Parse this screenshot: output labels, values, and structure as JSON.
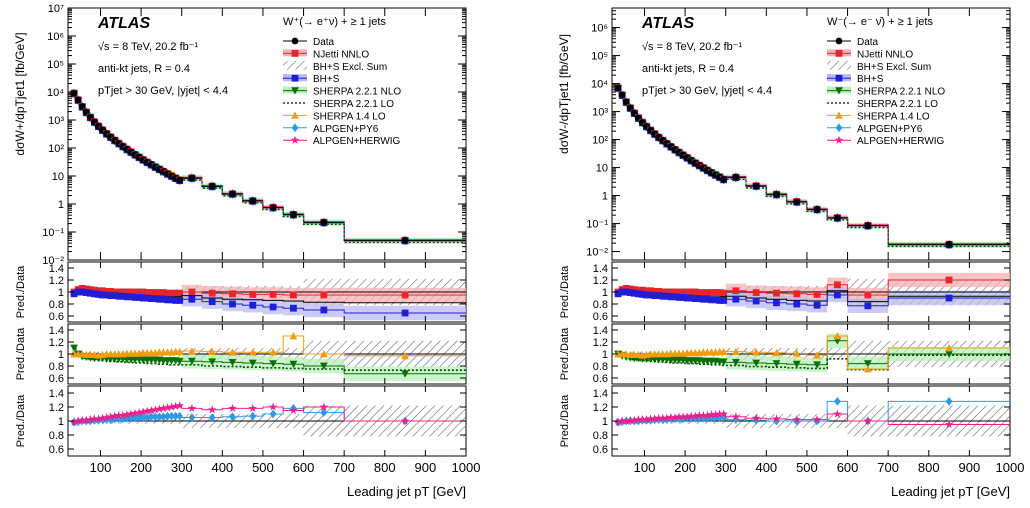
{
  "chart_data": [
    {
      "type": "line",
      "panel": "W+",
      "atlas_label": "ATLAS",
      "energy": "√s = 8 TeV, 20.2 fb⁻¹",
      "jets": "anti-kt jets, R = 0.4",
      "cuts": "pTjet > 30 GeV, |yjet| < 4.4",
      "process": "W⁺(→ e⁺ν) + ≥ 1 jets",
      "ylabel": "dσW+/dpTjet1 [fb/GeV]",
      "xlabel": "Leading jet pT [GeV]",
      "xlim": [
        20,
        1000
      ],
      "ylim": [
        0.01,
        10000000
      ],
      "yscale": "log",
      "x_ticks": [
        "100",
        "200",
        "300",
        "400",
        "500",
        "600",
        "700",
        "800",
        "900",
        "1000"
      ],
      "y_ticks": [
        "10⁻²",
        "10⁻¹",
        "1",
        "10",
        "10²",
        "10³",
        "10⁴",
        "10⁵",
        "10⁶",
        "10⁷"
      ],
      "legend": [
        "Data",
        "NJetti NNLO",
        "BH+S Excl. Sum",
        "BH+S",
        "SHERPA 2.2.1 NLO",
        "SHERPA 2.2.1 LO",
        "SHERPA 1.4 LO",
        "ALPGEN+PY6",
        "ALPGEN+HERWIG"
      ],
      "bins": [
        [
          30,
          40
        ],
        [
          40,
          50
        ],
        [
          50,
          60
        ],
        [
          60,
          70
        ],
        [
          70,
          80
        ],
        [
          80,
          90
        ],
        [
          90,
          100
        ],
        [
          100,
          110
        ],
        [
          110,
          120
        ],
        [
          120,
          130
        ],
        [
          130,
          140
        ],
        [
          140,
          150
        ],
        [
          150,
          160
        ],
        [
          160,
          170
        ],
        [
          170,
          180
        ],
        [
          180,
          190
        ],
        [
          190,
          200
        ],
        [
          200,
          210
        ],
        [
          210,
          220
        ],
        [
          220,
          230
        ],
        [
          230,
          240
        ],
        [
          240,
          250
        ],
        [
          250,
          260
        ],
        [
          260,
          270
        ],
        [
          270,
          280
        ],
        [
          280,
          290
        ],
        [
          290,
          300
        ],
        [
          300,
          350
        ],
        [
          350,
          400
        ],
        [
          400,
          450
        ],
        [
          450,
          500
        ],
        [
          500,
          550
        ],
        [
          550,
          600
        ],
        [
          600,
          700
        ],
        [
          700,
          1000
        ]
      ],
      "data": [
        9000,
        5200,
        3000,
        1900,
        1250,
        850,
        600,
        440,
        325,
        245,
        188,
        146,
        114,
        90,
        72,
        58,
        47,
        38,
        31,
        25.5,
        21,
        17.5,
        14.5,
        12,
        10,
        8.4,
        7.1,
        8.5,
        4.3,
        2.3,
        1.3,
        0.75,
        0.42,
        0.22,
        0.05
      ],
      "ratio_panels": [
        {
          "ylabel": "Pred./Data",
          "yrange": [
            0.5,
            1.5
          ],
          "series": {
            "NJetti NNLO": [
              1.0,
              1.04,
              1.06,
              1.05,
              1.04,
              1.03,
              1.02,
              1.02,
              1.01,
              1.01,
              1.0,
              1.0,
              1.0,
              1.0,
              1.0,
              1.0,
              1.0,
              1.0,
              0.99,
              0.99,
              0.99,
              0.99,
              0.99,
              0.98,
              0.98,
              0.98,
              0.98,
              1.0,
              0.98,
              0.97,
              0.96,
              0.96,
              0.95,
              0.95,
              0.95
            ],
            "BH+S Excl. Sum": [
              0.98,
              1.0,
              1.02,
              1.0,
              0.99,
              0.98,
              0.98,
              0.97,
              0.97,
              0.96,
              0.96,
              0.96,
              0.95,
              0.95,
              0.95,
              0.95,
              0.94,
              0.94,
              0.94,
              0.93,
              0.93,
              0.93,
              0.93,
              0.92,
              0.92,
              0.92,
              0.92,
              0.94,
              0.9,
              0.88,
              0.87,
              0.86,
              0.85,
              0.83,
              0.82
            ],
            "BH+S": [
              0.97,
              1.0,
              1.0,
              0.99,
              0.98,
              0.97,
              0.96,
              0.95,
              0.95,
              0.94,
              0.94,
              0.93,
              0.93,
              0.92,
              0.92,
              0.91,
              0.91,
              0.9,
              0.9,
              0.89,
              0.89,
              0.88,
              0.88,
              0.87,
              0.87,
              0.86,
              0.86,
              0.88,
              0.84,
              0.8,
              0.78,
              0.75,
              0.73,
              0.7,
              0.65
            ]
          }
        },
        {
          "ylabel": "Pred./Data",
          "yrange": [
            0.5,
            1.5
          ],
          "series": {
            "SHERPA 2.2.1 NLO": [
              1.1,
              1.0,
              0.96,
              0.95,
              0.94,
              0.93,
              0.93,
              0.93,
              0.92,
              0.92,
              0.92,
              0.92,
              0.92,
              0.91,
              0.91,
              0.91,
              0.91,
              0.9,
              0.9,
              0.9,
              0.9,
              0.9,
              0.89,
              0.89,
              0.89,
              0.89,
              0.88,
              0.88,
              0.87,
              0.86,
              0.85,
              0.84,
              0.83,
              0.8,
              0.67
            ],
            "SHERPA 2.2.1 LO": [
              1.0,
              0.97,
              0.95,
              0.93,
              0.92,
              0.91,
              0.9,
              0.89,
              0.89,
              0.88,
              0.88,
              0.87,
              0.87,
              0.86,
              0.86,
              0.85,
              0.85,
              0.85,
              0.84,
              0.84,
              0.84,
              0.83,
              0.83,
              0.83,
              0.82,
              0.82,
              0.82,
              0.82,
              0.8,
              0.79,
              0.78,
              0.77,
              0.76,
              0.75,
              0.73
            ],
            "SHERPA 1.4 LO": [
              1.0,
              1.0,
              1.0,
              0.99,
              0.99,
              0.99,
              0.98,
              0.99,
              1.0,
              1.0,
              1.0,
              1.0,
              1.0,
              1.01,
              1.01,
              1.01,
              1.01,
              1.02,
              1.02,
              1.02,
              1.02,
              1.03,
              1.03,
              1.03,
              1.03,
              1.04,
              1.04,
              1.05,
              1.04,
              1.03,
              1.03,
              1.03,
              1.3,
              1.0,
              0.97
            ]
          }
        },
        {
          "ylabel": "Pred./Data",
          "yrange": [
            0.5,
            1.5
          ],
          "series": {
            "ALPGEN+PY6": [
              0.98,
              0.99,
              1.0,
              1.0,
              1.0,
              1.01,
              1.01,
              1.02,
              1.02,
              1.02,
              1.03,
              1.03,
              1.03,
              1.04,
              1.04,
              1.04,
              1.05,
              1.05,
              1.05,
              1.06,
              1.06,
              1.06,
              1.06,
              1.07,
              1.07,
              1.07,
              1.07,
              1.05,
              1.05,
              1.06,
              1.07,
              1.1,
              1.18,
              1.12,
              1.0
            ],
            "ALPGEN+HERWIG": [
              0.98,
              1.0,
              1.01,
              1.01,
              1.02,
              1.03,
              1.03,
              1.04,
              1.05,
              1.06,
              1.07,
              1.08,
              1.08,
              1.09,
              1.1,
              1.11,
              1.12,
              1.13,
              1.14,
              1.15,
              1.16,
              1.17,
              1.18,
              1.19,
              1.2,
              1.21,
              1.22,
              1.18,
              1.16,
              1.18,
              1.18,
              1.2,
              1.15,
              1.2,
              1.0
            ]
          }
        }
      ]
    },
    {
      "type": "line",
      "panel": "W-",
      "atlas_label": "ATLAS",
      "energy": "√s = 8 TeV, 20.2 fb⁻¹",
      "jets": "anti-kt jets, R = 0.4",
      "cuts": "pTjet > 30 GeV, |yjet| < 4.4",
      "process": "W⁻(→ e⁻ ν̄) + ≥ 1 jets",
      "ylabel": "dσW-/dpTjet1 [fb/GeV]",
      "xlabel": "Leading jet pT [GeV]",
      "xlim": [
        20,
        1000
      ],
      "ylim": [
        0.005,
        5000000
      ],
      "yscale": "log",
      "x_ticks": [
        "100",
        "200",
        "300",
        "400",
        "500",
        "600",
        "700",
        "800",
        "900",
        "1000"
      ],
      "y_ticks": [
        "10⁻²",
        "10⁻¹",
        "1",
        "10",
        "10²",
        "10³",
        "10⁴",
        "10⁵",
        "10⁶"
      ],
      "legend": [
        "Data",
        "NJetti NNLO",
        "BH+S Excl. Sum",
        "BH+S",
        "SHERPA 2.2.1 NLO",
        "SHERPA 2.2.1 LO",
        "SHERPA 1.4 LO",
        "ALPGEN+PY6",
        "ALPGEN+HERWIG"
      ],
      "bins": [
        [
          30,
          40
        ],
        [
          40,
          50
        ],
        [
          50,
          60
        ],
        [
          60,
          70
        ],
        [
          70,
          80
        ],
        [
          80,
          90
        ],
        [
          90,
          100
        ],
        [
          100,
          110
        ],
        [
          110,
          120
        ],
        [
          120,
          130
        ],
        [
          130,
          140
        ],
        [
          140,
          150
        ],
        [
          150,
          160
        ],
        [
          160,
          170
        ],
        [
          170,
          180
        ],
        [
          180,
          190
        ],
        [
          190,
          200
        ],
        [
          200,
          210
        ],
        [
          210,
          220
        ],
        [
          220,
          230
        ],
        [
          230,
          240
        ],
        [
          240,
          250
        ],
        [
          250,
          260
        ],
        [
          260,
          270
        ],
        [
          270,
          280
        ],
        [
          280,
          290
        ],
        [
          290,
          300
        ],
        [
          300,
          350
        ],
        [
          350,
          400
        ],
        [
          400,
          450
        ],
        [
          450,
          500
        ],
        [
          500,
          550
        ],
        [
          550,
          600
        ],
        [
          600,
          700
        ],
        [
          700,
          1000
        ]
      ],
      "data": [
        7000,
        3900,
        2200,
        1350,
        880,
        590,
        410,
        295,
        215,
        160,
        121,
        93,
        72,
        56,
        44,
        35,
        28,
        22.5,
        18,
        14.6,
        12,
        9.8,
        8,
        6.6,
        5.5,
        4.6,
        3.8,
        4.5,
        2.2,
        1.1,
        0.6,
        0.32,
        0.16,
        0.085,
        0.018
      ],
      "ratio_panels": [
        {
          "ylabel": "Pred./Data",
          "yrange": [
            0.5,
            1.5
          ],
          "series": {
            "NJetti NNLO": [
              1.0,
              1.04,
              1.06,
              1.05,
              1.04,
              1.03,
              1.03,
              1.02,
              1.02,
              1.01,
              1.01,
              1.0,
              1.0,
              1.0,
              1.0,
              1.0,
              1.0,
              1.0,
              1.0,
              1.0,
              0.99,
              0.99,
              0.99,
              0.99,
              0.99,
              0.99,
              0.98,
              1.02,
              0.99,
              0.98,
              0.97,
              0.96,
              1.12,
              0.95,
              1.2
            ],
            "BH+S Excl. Sum": [
              0.98,
              1.0,
              1.02,
              1.0,
              0.99,
              0.98,
              0.98,
              0.97,
              0.97,
              0.96,
              0.96,
              0.96,
              0.95,
              0.95,
              0.95,
              0.95,
              0.94,
              0.94,
              0.94,
              0.93,
              0.93,
              0.93,
              0.93,
              0.92,
              0.92,
              0.92,
              0.92,
              0.93,
              0.9,
              0.88,
              0.86,
              0.85,
              1.02,
              0.84,
              0.93
            ],
            "BH+S": [
              0.97,
              1.0,
              1.0,
              0.99,
              0.98,
              0.97,
              0.96,
              0.95,
              0.95,
              0.94,
              0.94,
              0.93,
              0.93,
              0.92,
              0.92,
              0.91,
              0.91,
              0.9,
              0.9,
              0.89,
              0.89,
              0.88,
              0.88,
              0.87,
              0.87,
              0.86,
              0.86,
              0.88,
              0.85,
              0.82,
              0.8,
              0.78,
              0.95,
              0.77,
              0.9
            ]
          }
        },
        {
          "ylabel": "Pred./Data",
          "yrange": [
            0.5,
            1.5
          ],
          "series": {
            "SHERPA 2.2.1 NLO": [
              1.0,
              0.97,
              0.95,
              0.94,
              0.93,
              0.93,
              0.92,
              0.92,
              0.92,
              0.91,
              0.91,
              0.91,
              0.91,
              0.9,
              0.9,
              0.9,
              0.9,
              0.89,
              0.89,
              0.89,
              0.89,
              0.88,
              0.88,
              0.88,
              0.88,
              0.87,
              0.87,
              0.86,
              0.85,
              0.84,
              0.83,
              0.82,
              1.22,
              0.84,
              1.0
            ],
            "SHERPA 2.2.1 LO": [
              0.98,
              0.96,
              0.94,
              0.92,
              0.91,
              0.9,
              0.89,
              0.89,
              0.88,
              0.88,
              0.87,
              0.87,
              0.86,
              0.86,
              0.85,
              0.85,
              0.85,
              0.84,
              0.84,
              0.84,
              0.83,
              0.83,
              0.83,
              0.82,
              0.82,
              0.82,
              0.81,
              0.81,
              0.79,
              0.78,
              0.77,
              0.76,
              0.92,
              0.74,
              0.98
            ],
            "SHERPA 1.4 LO": [
              1.0,
              1.0,
              1.0,
              0.99,
              0.99,
              0.99,
              0.98,
              0.99,
              1.0,
              1.0,
              1.0,
              1.0,
              1.0,
              1.01,
              1.01,
              1.01,
              1.01,
              1.02,
              1.02,
              1.02,
              1.02,
              1.03,
              1.03,
              1.03,
              1.03,
              1.04,
              1.04,
              1.04,
              1.03,
              1.02,
              1.01,
              0.98,
              1.3,
              0.75,
              1.1
            ]
          }
        },
        {
          "ylabel": "Pred./Data",
          "yrange": [
            0.5,
            1.5
          ],
          "series": {
            "ALPGEN+PY6": [
              0.98,
              0.99,
              1.0,
              1.0,
              1.0,
              1.0,
              1.01,
              1.01,
              1.01,
              1.02,
              1.02,
              1.02,
              1.02,
              1.03,
              1.03,
              1.03,
              1.03,
              1.04,
              1.04,
              1.04,
              1.04,
              1.04,
              1.04,
              1.05,
              1.05,
              1.05,
              1.05,
              1.02,
              1.01,
              1.0,
              1.0,
              1.0,
              1.28,
              1.0,
              1.28
            ],
            "ALPGEN+HERWIG": [
              0.98,
              1.0,
              1.0,
              1.01,
              1.01,
              1.02,
              1.02,
              1.02,
              1.03,
              1.03,
              1.04,
              1.04,
              1.04,
              1.05,
              1.05,
              1.06,
              1.06,
              1.06,
              1.07,
              1.07,
              1.08,
              1.08,
              1.08,
              1.09,
              1.09,
              1.1,
              1.1,
              1.06,
              1.04,
              1.03,
              1.02,
              1.02,
              1.1,
              1.0,
              0.95
            ]
          }
        }
      ]
    }
  ],
  "colors": {
    "data": "#000000",
    "njetti": "#e8252a",
    "njetti_band": "#f5b0b2",
    "bhs_excl": "#000000",
    "bhs": "#1f1fd6",
    "bhs_band": "#b9b9f2",
    "sherpa221nlo": "#0b6e0b",
    "sherpa_band": "#b8f0b8",
    "sherpa221lo": "#0b4d0b",
    "sherpa14lo": "#f39c12",
    "alpgen_py6": "#2b9be8",
    "alpgen_herwig": "#ee1f8d",
    "hatch": "#555555"
  }
}
